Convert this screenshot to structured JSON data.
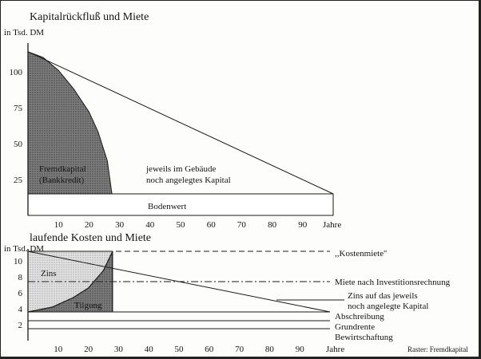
{
  "chart_data": [
    {
      "type": "area",
      "title": "Kapitalrückfluß und Miete",
      "ylabel": "in Tsd. DM",
      "xlabel": "Jahre",
      "x_ticks": [
        10,
        20,
        30,
        40,
        50,
        60,
        70,
        80,
        90
      ],
      "y_ticks": [
        25,
        50,
        75,
        100
      ],
      "xlim": [
        0,
        100
      ],
      "ylim": [
        0,
        120
      ],
      "series": [
        {
          "name": "Fremdkapital (Bankkredit)",
          "values": [
            [
              0,
              114
            ],
            [
              5,
              110
            ],
            [
              10,
              101
            ],
            [
              15,
              88
            ],
            [
              20,
              72
            ],
            [
              23,
              58
            ],
            [
              26,
              38
            ],
            [
              27.5,
              15
            ]
          ]
        },
        {
          "name": "jeweils im Gebäude noch angelegtes Kapital",
          "values": [
            [
              0,
              114
            ],
            [
              100,
              15
            ]
          ]
        },
        {
          "name": "Bodenwert",
          "values": [
            [
              0,
              15
            ],
            [
              100,
              15
            ]
          ]
        }
      ],
      "annotations": {
        "fremdkapital_line1": "Fremdkapital",
        "fremdkapital_line2": "(Bankkredit)",
        "gebaeude_line1": "jeweils im Gebäude",
        "gebaeude_line2": "noch angelegtes Kapital",
        "bodenwert": "Bodenwert"
      }
    },
    {
      "type": "area",
      "title": "laufende Kosten und Miete",
      "ylabel": "in Tsd. DM",
      "xlabel": "Jahre",
      "x_ticks": [
        10,
        20,
        30,
        40,
        50,
        60,
        70,
        80,
        90
      ],
      "y_ticks": [
        2,
        4,
        6,
        8,
        10
      ],
      "xlim": [
        0,
        100
      ],
      "ylim": [
        0,
        11.5
      ],
      "series": [
        {
          "name": "Kostenmiete",
          "values": [
            [
              0,
              11.2
            ],
            [
              100,
              11.2
            ]
          ]
        },
        {
          "name": "Miete nach Investitionsrechnung",
          "values": [
            [
              0,
              7.4
            ],
            [
              100,
              7.4
            ]
          ]
        },
        {
          "name": "Zins auf das jeweils noch angelegte Kapital",
          "values": [
            [
              0,
              11.2
            ],
            [
              100,
              3.6
            ]
          ]
        },
        {
          "name": "Zins",
          "values": [
            [
              0,
              11.2
            ],
            [
              28,
              11.2
            ]
          ]
        },
        {
          "name": "Tilgung",
          "values": [
            [
              0,
              3.6
            ],
            [
              8,
              4.2
            ],
            [
              15,
              5.4
            ],
            [
              20,
              6.6
            ],
            [
              25,
              8.8
            ],
            [
              28,
              11.2
            ]
          ]
        },
        {
          "name": "Abschreibung",
          "values": [
            [
              0,
              3.6
            ],
            [
              100,
              3.6
            ]
          ]
        },
        {
          "name": "Grundrente",
          "values": [
            [
              0,
              2.5
            ],
            [
              100,
              2.5
            ]
          ]
        },
        {
          "name": "Bewirtschaftung",
          "values": [
            [
              0,
              1.5
            ],
            [
              100,
              1.5
            ]
          ]
        }
      ],
      "annotations": {
        "kostenmiete": ",,Kostenmiete''",
        "miete_invest": "Miete nach Investitionsrechnung",
        "zins_line1": "Zins auf das jeweils",
        "zins_line2": "noch angelegte Kapital",
        "abschreibung": "Abschreibung",
        "grundrente": "Grundrente",
        "bewirtschaftung": "Bewirtschaftung",
        "zins": "Zins",
        "tilgung": "Tilgung"
      }
    }
  ],
  "footnote": "Raster: Fremdkapital"
}
